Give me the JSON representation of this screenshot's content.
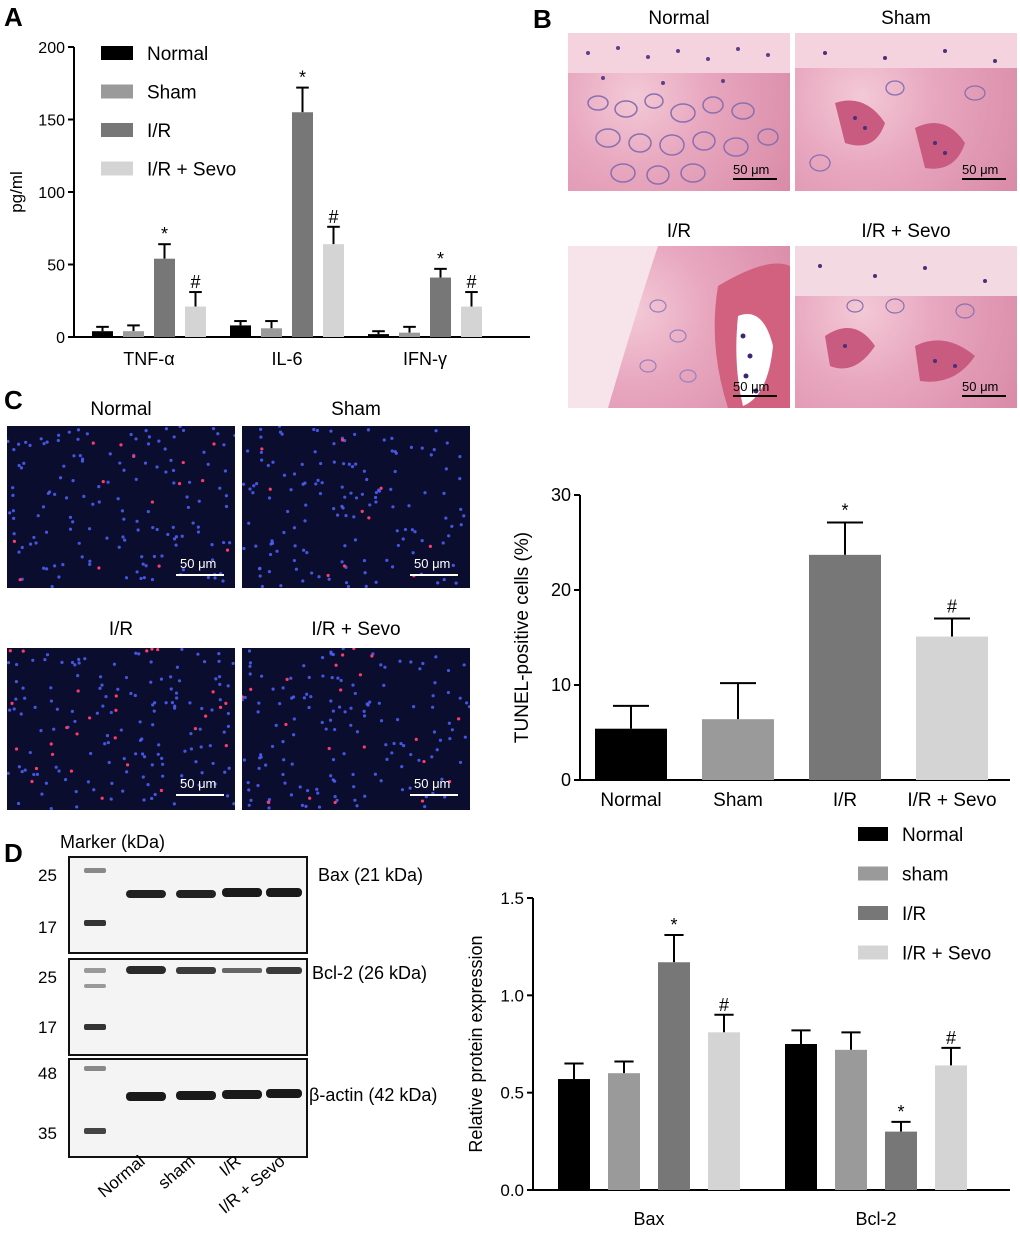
{
  "panels": {
    "A": "A",
    "B": "B",
    "C": "C",
    "D": "D"
  },
  "microscopy_B": {
    "titles": [
      "Normal",
      "Sham",
      "I/R",
      "I/R + Sevo"
    ],
    "scale": "50 μm"
  },
  "microscopy_C": {
    "titles": [
      "Normal",
      "Sham",
      "I/R",
      "I/R + Sevo"
    ],
    "scale": "50 μm"
  },
  "western": {
    "marker_title": "Marker (kDa)",
    "blots": [
      {
        "label": "Bax (21 kDa)",
        "markers": [
          "25",
          "17"
        ]
      },
      {
        "label": "Bcl-2 (26 kDa)",
        "markers": [
          "25",
          "17"
        ]
      },
      {
        "label": "β-actin (42 kDa)",
        "markers": [
          "48",
          "35"
        ]
      }
    ],
    "lanes": [
      "Normal",
      "sham",
      "I/R",
      "I/R + Sevo"
    ]
  },
  "colors": {
    "normal": "#000000",
    "sham": "#9a9a9a",
    "ir": "#777777",
    "ir_sevo": "#d4d4d4"
  },
  "chart_data": [
    {
      "id": "A",
      "type": "bar",
      "categories": [
        "TNF-α",
        "IL-6",
        "IFN-γ"
      ],
      "series": [
        {
          "name": "Normal",
          "values": [
            4,
            8,
            2
          ],
          "errors": [
            3,
            3,
            2
          ]
        },
        {
          "name": "Sham",
          "values": [
            4,
            6,
            3
          ],
          "errors": [
            4,
            5,
            4
          ]
        },
        {
          "name": "I/R",
          "values": [
            54,
            155,
            41
          ],
          "errors": [
            10,
            17,
            6
          ]
        },
        {
          "name": "I/R + Sevo",
          "values": [
            21,
            64,
            21
          ],
          "errors": [
            10,
            12,
            10
          ]
        }
      ],
      "annotations": [
        {
          "series": "I/R",
          "marks": [
            "*",
            "*",
            "*"
          ]
        },
        {
          "series": "I/R + Sevo",
          "marks": [
            "#",
            "#",
            "#"
          ]
        }
      ],
      "ylabel": "pg/ml",
      "xlabel": "",
      "ylim": [
        0,
        200
      ],
      "yticks": [
        0,
        50,
        100,
        150,
        200
      ],
      "legend": "top-left"
    },
    {
      "id": "C",
      "type": "bar",
      "categories": [
        "Normal",
        "Sham",
        "I/R",
        "I/R + Sevo"
      ],
      "values": [
        5.4,
        6.4,
        23.7,
        15.1
      ],
      "errors": [
        2.4,
        3.8,
        3.4,
        1.9
      ],
      "marks": [
        "",
        "",
        "*",
        "#"
      ],
      "ylabel": "TUNEL-positive cells (%)",
      "xlabel": "",
      "ylim": [
        0,
        30
      ],
      "yticks": [
        0,
        10,
        20,
        30
      ]
    },
    {
      "id": "D",
      "type": "bar",
      "categories": [
        "Bax",
        "Bcl-2"
      ],
      "series": [
        {
          "name": "Normal",
          "values": [
            0.57,
            0.75
          ],
          "errors": [
            0.08,
            0.07
          ]
        },
        {
          "name": "sham",
          "values": [
            0.6,
            0.72
          ],
          "errors": [
            0.06,
            0.09
          ]
        },
        {
          "name": "I/R",
          "values": [
            1.17,
            0.3
          ],
          "errors": [
            0.14,
            0.05
          ]
        },
        {
          "name": "I/R + Sevo",
          "values": [
            0.81,
            0.64
          ],
          "errors": [
            0.09,
            0.09
          ]
        }
      ],
      "annotations": [
        {
          "series": "I/R",
          "marks": [
            "*",
            "*"
          ]
        },
        {
          "series": "I/R + Sevo",
          "marks": [
            "#",
            "#"
          ]
        }
      ],
      "ylabel": "Relative protein expression",
      "xlabel": "",
      "ylim": [
        0,
        1.5
      ],
      "yticks": [
        "0.0",
        "0.5",
        "1.0",
        "1.5"
      ],
      "legend": "top-right"
    }
  ]
}
